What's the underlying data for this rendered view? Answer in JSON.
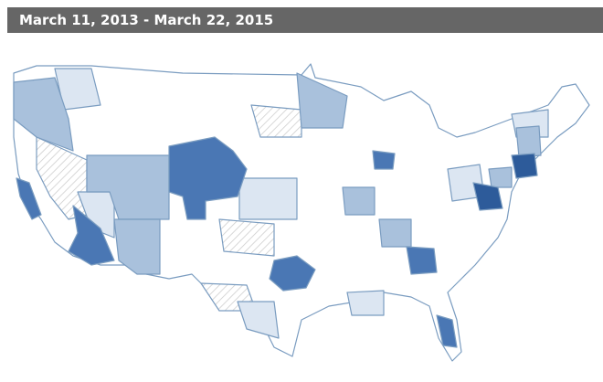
{
  "header": {
    "title": "March 11, 2013 - March 22, 2015"
  }
}
